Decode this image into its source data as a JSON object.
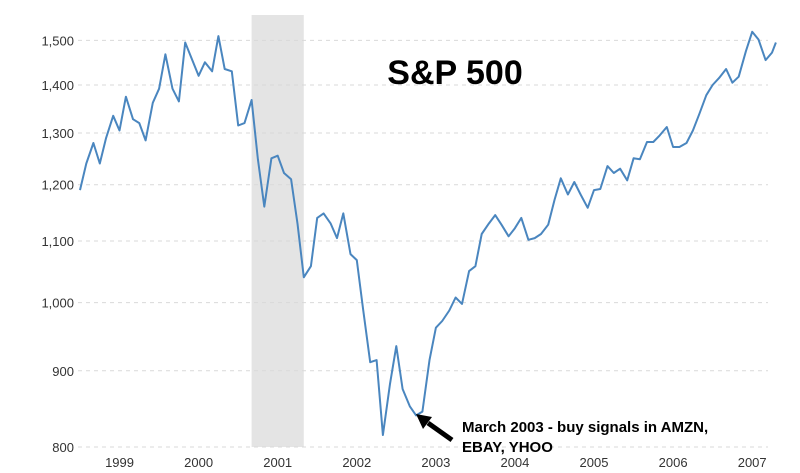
{
  "chart_data": {
    "type": "line",
    "title": "S&P 500",
    "xlabel": "",
    "ylabel": "",
    "scale": "log",
    "grid": true,
    "xlim": [
      1998.5,
      2007.2
    ],
    "ylim": [
      800,
      1560
    ],
    "y_ticks": [
      800,
      900,
      1000,
      1100,
      1200,
      1300,
      1400,
      1500
    ],
    "y_tick_labels": [
      "800",
      "900",
      "1,000",
      "1,100",
      "1,200",
      "1,300",
      "1,400",
      "1,500"
    ],
    "x_ticks": [
      1999.0,
      2000.0,
      2001.0,
      2002.0,
      2003.0,
      2004.0,
      2005.0,
      2006.0,
      2007.0
    ],
    "x_tick_labels": [
      "1999",
      "2000",
      "2001",
      "2002",
      "2003",
      "2004",
      "2005",
      "2006",
      "2007"
    ],
    "recession": {
      "start": 2000.67,
      "end": 2001.33,
      "color": "#e4e4e4"
    },
    "series": [
      {
        "color": "#4a86bf",
        "points": [
          [
            1998.5,
            1190
          ],
          [
            1998.58,
            1240
          ],
          [
            1998.67,
            1280
          ],
          [
            1998.75,
            1240
          ],
          [
            1998.83,
            1290
          ],
          [
            1998.92,
            1335
          ],
          [
            1999.0,
            1305
          ],
          [
            1999.08,
            1375
          ],
          [
            1999.17,
            1328
          ],
          [
            1999.25,
            1320
          ],
          [
            1999.33,
            1285
          ],
          [
            1999.42,
            1362
          ],
          [
            1999.5,
            1392
          ],
          [
            1999.58,
            1468
          ],
          [
            1999.67,
            1392
          ],
          [
            1999.75,
            1365
          ],
          [
            1999.83,
            1495
          ],
          [
            1999.92,
            1455
          ],
          [
            2000.0,
            1420
          ],
          [
            2000.08,
            1450
          ],
          [
            2000.17,
            1430
          ],
          [
            2000.25,
            1510
          ],
          [
            2000.33,
            1435
          ],
          [
            2000.42,
            1430
          ],
          [
            2000.5,
            1315
          ],
          [
            2000.58,
            1320
          ],
          [
            2000.67,
            1368
          ],
          [
            2000.75,
            1248
          ],
          [
            2000.83,
            1160
          ],
          [
            2000.92,
            1250
          ],
          [
            2001.0,
            1255
          ],
          [
            2001.08,
            1222
          ],
          [
            2001.17,
            1210
          ],
          [
            2001.25,
            1130
          ],
          [
            2001.33,
            1040
          ],
          [
            2001.42,
            1058
          ],
          [
            2001.5,
            1140
          ],
          [
            2001.58,
            1148
          ],
          [
            2001.67,
            1130
          ],
          [
            2001.75,
            1105
          ],
          [
            2001.83,
            1148
          ],
          [
            2001.92,
            1078
          ],
          [
            2002.0,
            1068
          ],
          [
            2002.08,
            990
          ],
          [
            2002.17,
            912
          ],
          [
            2002.25,
            915
          ],
          [
            2002.33,
            815
          ],
          [
            2002.42,
            882
          ],
          [
            2002.5,
            935
          ],
          [
            2002.58,
            875
          ],
          [
            2002.67,
            852
          ],
          [
            2002.75,
            840
          ],
          [
            2002.83,
            845
          ],
          [
            2002.92,
            915
          ],
          [
            2003.0,
            962
          ],
          [
            2003.08,
            972
          ],
          [
            2003.17,
            988
          ],
          [
            2003.25,
            1008
          ],
          [
            2003.33,
            998
          ],
          [
            2003.42,
            1050
          ],
          [
            2003.5,
            1058
          ],
          [
            2003.58,
            1112
          ],
          [
            2003.67,
            1130
          ],
          [
            2003.75,
            1145
          ],
          [
            2003.83,
            1128
          ],
          [
            2003.92,
            1108
          ],
          [
            2004.0,
            1122
          ],
          [
            2004.08,
            1140
          ],
          [
            2004.17,
            1102
          ],
          [
            2004.25,
            1105
          ],
          [
            2004.33,
            1112
          ],
          [
            2004.42,
            1128
          ],
          [
            2004.5,
            1172
          ],
          [
            2004.58,
            1212
          ],
          [
            2004.67,
            1182
          ],
          [
            2004.75,
            1205
          ],
          [
            2004.83,
            1182
          ],
          [
            2004.92,
            1158
          ],
          [
            2005.0,
            1190
          ],
          [
            2005.08,
            1192
          ],
          [
            2005.17,
            1235
          ],
          [
            2005.25,
            1222
          ],
          [
            2005.33,
            1230
          ],
          [
            2005.42,
            1208
          ],
          [
            2005.5,
            1250
          ],
          [
            2005.58,
            1248
          ],
          [
            2005.67,
            1282
          ],
          [
            2005.75,
            1282
          ],
          [
            2005.83,
            1295
          ],
          [
            2005.92,
            1312
          ],
          [
            2006.0,
            1272
          ],
          [
            2006.08,
            1272
          ],
          [
            2006.17,
            1280
          ],
          [
            2006.25,
            1305
          ],
          [
            2006.33,
            1338
          ],
          [
            2006.42,
            1378
          ],
          [
            2006.5,
            1400
          ],
          [
            2006.58,
            1415
          ],
          [
            2006.67,
            1435
          ],
          [
            2006.75,
            1405
          ],
          [
            2006.83,
            1418
          ],
          [
            2006.92,
            1475
          ],
          [
            2007.0,
            1520
          ],
          [
            2007.08,
            1502
          ],
          [
            2007.17,
            1455
          ],
          [
            2007.25,
            1472
          ],
          [
            2007.3,
            1495
          ]
        ]
      }
    ],
    "annotation": {
      "lines": [
        "March 2003 - buy signals in AMZN,",
        "EBAY, YHOO"
      ],
      "target": [
        2002.75,
        840
      ]
    }
  }
}
